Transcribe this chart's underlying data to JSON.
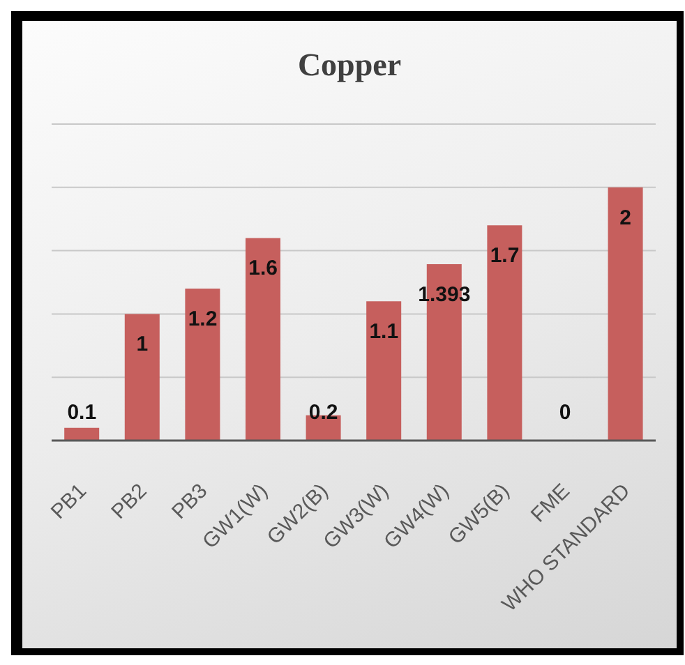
{
  "chart_data": {
    "type": "bar",
    "title": "Copper",
    "categories": [
      "PB1",
      "PB2",
      "PB3",
      "GW1(W)",
      "GW2(B)",
      "GW3(W)",
      "GW4(W)",
      "GW5(B)",
      "FME",
      "WHO STANDARD"
    ],
    "values": [
      0.1,
      1,
      1.2,
      1.6,
      0.2,
      1.1,
      1.393,
      1.7,
      0,
      2
    ],
    "color": "#c65f5d",
    "ylim": [
      0,
      2.5
    ],
    "yticks": [
      {
        "value": 0,
        "label": null
      },
      {
        "value": 0.5,
        "label": null
      },
      {
        "value": 1,
        "label": null
      },
      {
        "value": 1.5,
        "label": null
      },
      {
        "value": 2,
        "label": null
      },
      {
        "value": 2.5,
        "label": null
      }
    ],
    "grid": "y",
    "data_labels": true,
    "tick_labels": "x"
  }
}
